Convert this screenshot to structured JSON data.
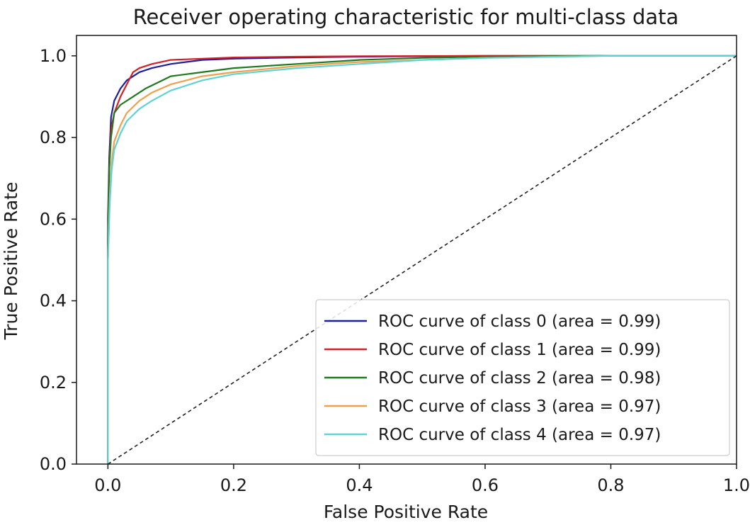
{
  "chart_data": {
    "type": "line",
    "title": "Receiver operating characteristic for multi-class data",
    "xlabel": "False Positive Rate",
    "ylabel": "True Positive Rate",
    "xlim": [
      -0.05,
      1.0
    ],
    "ylim": [
      0.0,
      1.05
    ],
    "xticks": [
      "0.0",
      "0.2",
      "0.4",
      "0.6",
      "0.8",
      "1.0"
    ],
    "yticks": [
      "0.0",
      "0.2",
      "0.4",
      "0.6",
      "0.8",
      "1.0"
    ],
    "grid": false,
    "legend_position": "lower-right",
    "series": [
      {
        "name": "ROC curve of class 0 (area = 0.99)",
        "color": "#1f1f9c",
        "x": [
          0.0,
          0.0,
          0.002,
          0.005,
          0.01,
          0.02,
          0.03,
          0.05,
          0.07,
          0.1,
          0.15,
          0.2,
          0.3,
          0.4,
          0.5,
          0.6,
          0.8,
          1.0
        ],
        "y": [
          0.0,
          0.6,
          0.75,
          0.85,
          0.89,
          0.92,
          0.94,
          0.96,
          0.97,
          0.98,
          0.99,
          0.993,
          0.996,
          0.998,
          0.999,
          1.0,
          1.0,
          1.0
        ]
      },
      {
        "name": "ROC curve of class 1 (area = 0.99)",
        "color": "#d41f26",
        "x": [
          0.0,
          0.0,
          0.002,
          0.005,
          0.01,
          0.02,
          0.03,
          0.04,
          0.05,
          0.07,
          0.1,
          0.15,
          0.2,
          0.3,
          0.4,
          0.6,
          0.8,
          1.0
        ],
        "y": [
          0.0,
          0.55,
          0.72,
          0.82,
          0.86,
          0.9,
          0.93,
          0.96,
          0.97,
          0.98,
          0.99,
          0.993,
          0.996,
          0.998,
          0.999,
          1.0,
          1.0,
          1.0
        ]
      },
      {
        "name": "ROC curve of class 2 (area = 0.98)",
        "color": "#1e7a1e",
        "x": [
          0.0,
          0.0,
          0.002,
          0.005,
          0.01,
          0.02,
          0.04,
          0.06,
          0.08,
          0.1,
          0.15,
          0.2,
          0.25,
          0.3,
          0.4,
          0.5,
          0.6,
          0.8,
          1.0
        ],
        "y": [
          0.0,
          0.55,
          0.72,
          0.8,
          0.86,
          0.88,
          0.9,
          0.92,
          0.935,
          0.95,
          0.96,
          0.97,
          0.975,
          0.98,
          0.99,
          0.995,
          0.998,
          1.0,
          1.0
        ]
      },
      {
        "name": "ROC curve of class 3 (area = 0.97)",
        "color": "#f0a04b",
        "x": [
          0.0,
          0.0,
          0.003,
          0.006,
          0.01,
          0.02,
          0.03,
          0.05,
          0.07,
          0.1,
          0.15,
          0.2,
          0.3,
          0.4,
          0.5,
          0.6,
          0.8,
          1.0
        ],
        "y": [
          0.0,
          0.5,
          0.66,
          0.74,
          0.79,
          0.83,
          0.86,
          0.89,
          0.91,
          0.93,
          0.95,
          0.96,
          0.975,
          0.985,
          0.99,
          0.995,
          1.0,
          1.0
        ]
      },
      {
        "name": "ROC curve of class 4 (area = 0.97)",
        "color": "#5fd3d3",
        "x": [
          0.0,
          0.0,
          0.003,
          0.006,
          0.01,
          0.02,
          0.03,
          0.05,
          0.07,
          0.1,
          0.15,
          0.2,
          0.3,
          0.4,
          0.5,
          0.6,
          0.8,
          1.0
        ],
        "y": [
          0.0,
          0.5,
          0.64,
          0.72,
          0.77,
          0.81,
          0.84,
          0.87,
          0.89,
          0.915,
          0.94,
          0.955,
          0.97,
          0.98,
          0.99,
          0.995,
          1.0,
          1.0
        ]
      }
    ],
    "reference_line": {
      "x": [
        0.0,
        1.0
      ],
      "y": [
        0.0,
        1.0
      ],
      "color": "#222222",
      "style": "dashed"
    }
  }
}
